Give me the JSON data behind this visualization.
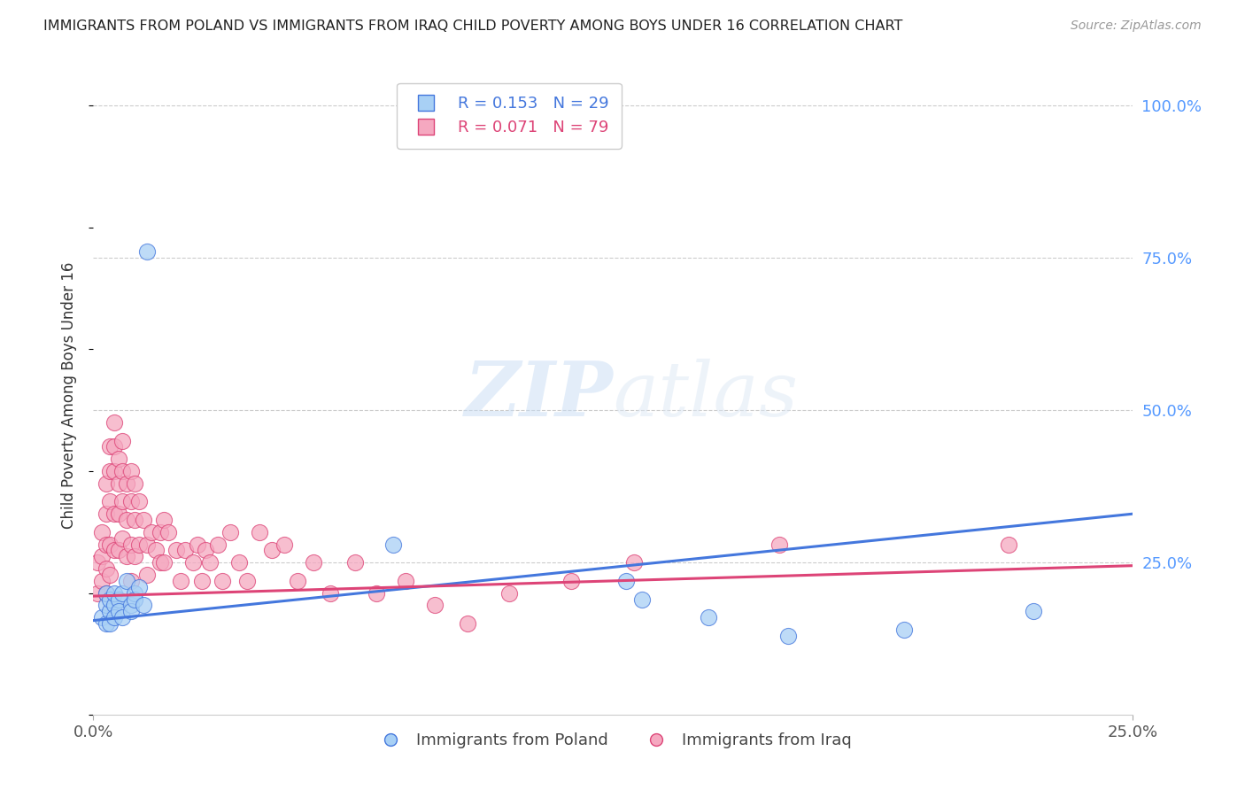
{
  "title": "IMMIGRANTS FROM POLAND VS IMMIGRANTS FROM IRAQ CHILD POVERTY AMONG BOYS UNDER 16 CORRELATION CHART",
  "source": "Source: ZipAtlas.com",
  "ylabel": "Child Poverty Among Boys Under 16",
  "legend_poland": "R = 0.153   N = 29",
  "legend_iraq": "R = 0.071   N = 79",
  "legend_label_poland": "Immigrants from Poland",
  "legend_label_iraq": "Immigrants from Iraq",
  "color_poland": "#a8d0f5",
  "color_iraq": "#f5a8c0",
  "color_line_poland": "#4477dd",
  "color_line_iraq": "#dd4477",
  "color_right_axis": "#5599ff",
  "watermark_zip": "ZIP",
  "watermark_atlas": "atlas",
  "poland_x": [
    0.002,
    0.003,
    0.003,
    0.003,
    0.004,
    0.004,
    0.004,
    0.005,
    0.005,
    0.005,
    0.006,
    0.006,
    0.007,
    0.007,
    0.008,
    0.009,
    0.009,
    0.01,
    0.01,
    0.011,
    0.012,
    0.013,
    0.072,
    0.128,
    0.132,
    0.148,
    0.167,
    0.195,
    0.226
  ],
  "poland_y": [
    0.16,
    0.18,
    0.15,
    0.2,
    0.17,
    0.19,
    0.15,
    0.18,
    0.2,
    0.16,
    0.19,
    0.17,
    0.2,
    0.16,
    0.22,
    0.18,
    0.17,
    0.2,
    0.19,
    0.21,
    0.18,
    0.76,
    0.28,
    0.22,
    0.19,
    0.16,
    0.13,
    0.14,
    0.17
  ],
  "iraq_x": [
    0.001,
    0.001,
    0.002,
    0.002,
    0.002,
    0.003,
    0.003,
    0.003,
    0.003,
    0.003,
    0.004,
    0.004,
    0.004,
    0.004,
    0.004,
    0.005,
    0.005,
    0.005,
    0.005,
    0.005,
    0.006,
    0.006,
    0.006,
    0.006,
    0.007,
    0.007,
    0.007,
    0.007,
    0.008,
    0.008,
    0.008,
    0.009,
    0.009,
    0.009,
    0.009,
    0.01,
    0.01,
    0.01,
    0.011,
    0.011,
    0.012,
    0.013,
    0.013,
    0.014,
    0.015,
    0.016,
    0.016,
    0.017,
    0.017,
    0.018,
    0.02,
    0.021,
    0.022,
    0.024,
    0.025,
    0.026,
    0.027,
    0.028,
    0.03,
    0.031,
    0.033,
    0.035,
    0.037,
    0.04,
    0.043,
    0.046,
    0.049,
    0.053,
    0.057,
    0.063,
    0.068,
    0.075,
    0.082,
    0.09,
    0.1,
    0.115,
    0.13,
    0.165,
    0.22
  ],
  "iraq_y": [
    0.25,
    0.2,
    0.3,
    0.26,
    0.22,
    0.38,
    0.33,
    0.28,
    0.24,
    0.2,
    0.44,
    0.4,
    0.35,
    0.28,
    0.23,
    0.48,
    0.44,
    0.4,
    0.33,
    0.27,
    0.42,
    0.38,
    0.33,
    0.27,
    0.45,
    0.4,
    0.35,
    0.29,
    0.38,
    0.32,
    0.26,
    0.4,
    0.35,
    0.28,
    0.22,
    0.38,
    0.32,
    0.26,
    0.35,
    0.28,
    0.32,
    0.28,
    0.23,
    0.3,
    0.27,
    0.3,
    0.25,
    0.32,
    0.25,
    0.3,
    0.27,
    0.22,
    0.27,
    0.25,
    0.28,
    0.22,
    0.27,
    0.25,
    0.28,
    0.22,
    0.3,
    0.25,
    0.22,
    0.3,
    0.27,
    0.28,
    0.22,
    0.25,
    0.2,
    0.25,
    0.2,
    0.22,
    0.18,
    0.15,
    0.2,
    0.22,
    0.25,
    0.28,
    0.28
  ],
  "xmin": 0.0,
  "xmax": 0.25,
  "ymin": 0.0,
  "ymax": 1.05
}
